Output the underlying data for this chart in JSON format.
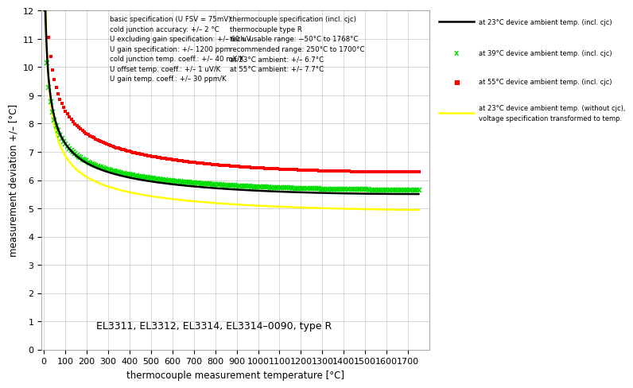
{
  "title": "",
  "xlabel": "thermocouple measurement temperature [°C]",
  "ylabel": "measurement deviation +/– [°C]",
  "xlim": [
    -10,
    1800
  ],
  "ylim": [
    0,
    12
  ],
  "xticks": [
    0,
    100,
    200,
    300,
    400,
    500,
    600,
    700,
    800,
    900,
    1000,
    1100,
    1200,
    1300,
    1400,
    1500,
    1600,
    1700
  ],
  "yticks": [
    0,
    1,
    2,
    3,
    4,
    5,
    6,
    7,
    8,
    9,
    10,
    11,
    12
  ],
  "annotation": "EL3311, EL3312, EL3314, EL3314–0090, type R",
  "legend_entries": [
    "at 23°C device ambient temp. (incl. cjc)",
    "at 39°C device ambient temp. (incl. cjc)",
    "at 55°C device ambient temp. (incl. cjc)",
    "at 23°C device ambient temp. (without cjc),\nvoltage specification transformed to temp."
  ],
  "info_text_left": "basic specification (U FSV = 75mV)\ncold junction accuracy: +/– 2 °C\nU excluding gain specification: +/– 60 uV\nU gain specification: +/– 1200 ppm\ncold junction temp. coeff.: +/– 40 mK/K\nU offset temp. coeff.: +/– 1 uV/K\nU gain temp. coeff.: +/– 30 ppm/K",
  "info_text_right": "thermocouple specification (incl. cjc)\nthermocouple type R\ntech. usable range: −50°C to 1768°C\nrecommended range: 250°C to 1700°C\nat 23°C ambient: +/– 6.7°C\nat 55°C ambient: +/– 7.7°C",
  "colors": {
    "black_line": "#000000",
    "green_cross": "#00dd00",
    "red_dot": "#ff0000",
    "yellow_line": "#ffff00"
  },
  "background_color": "#ffffff",
  "grid_color": "#c8c8c8"
}
